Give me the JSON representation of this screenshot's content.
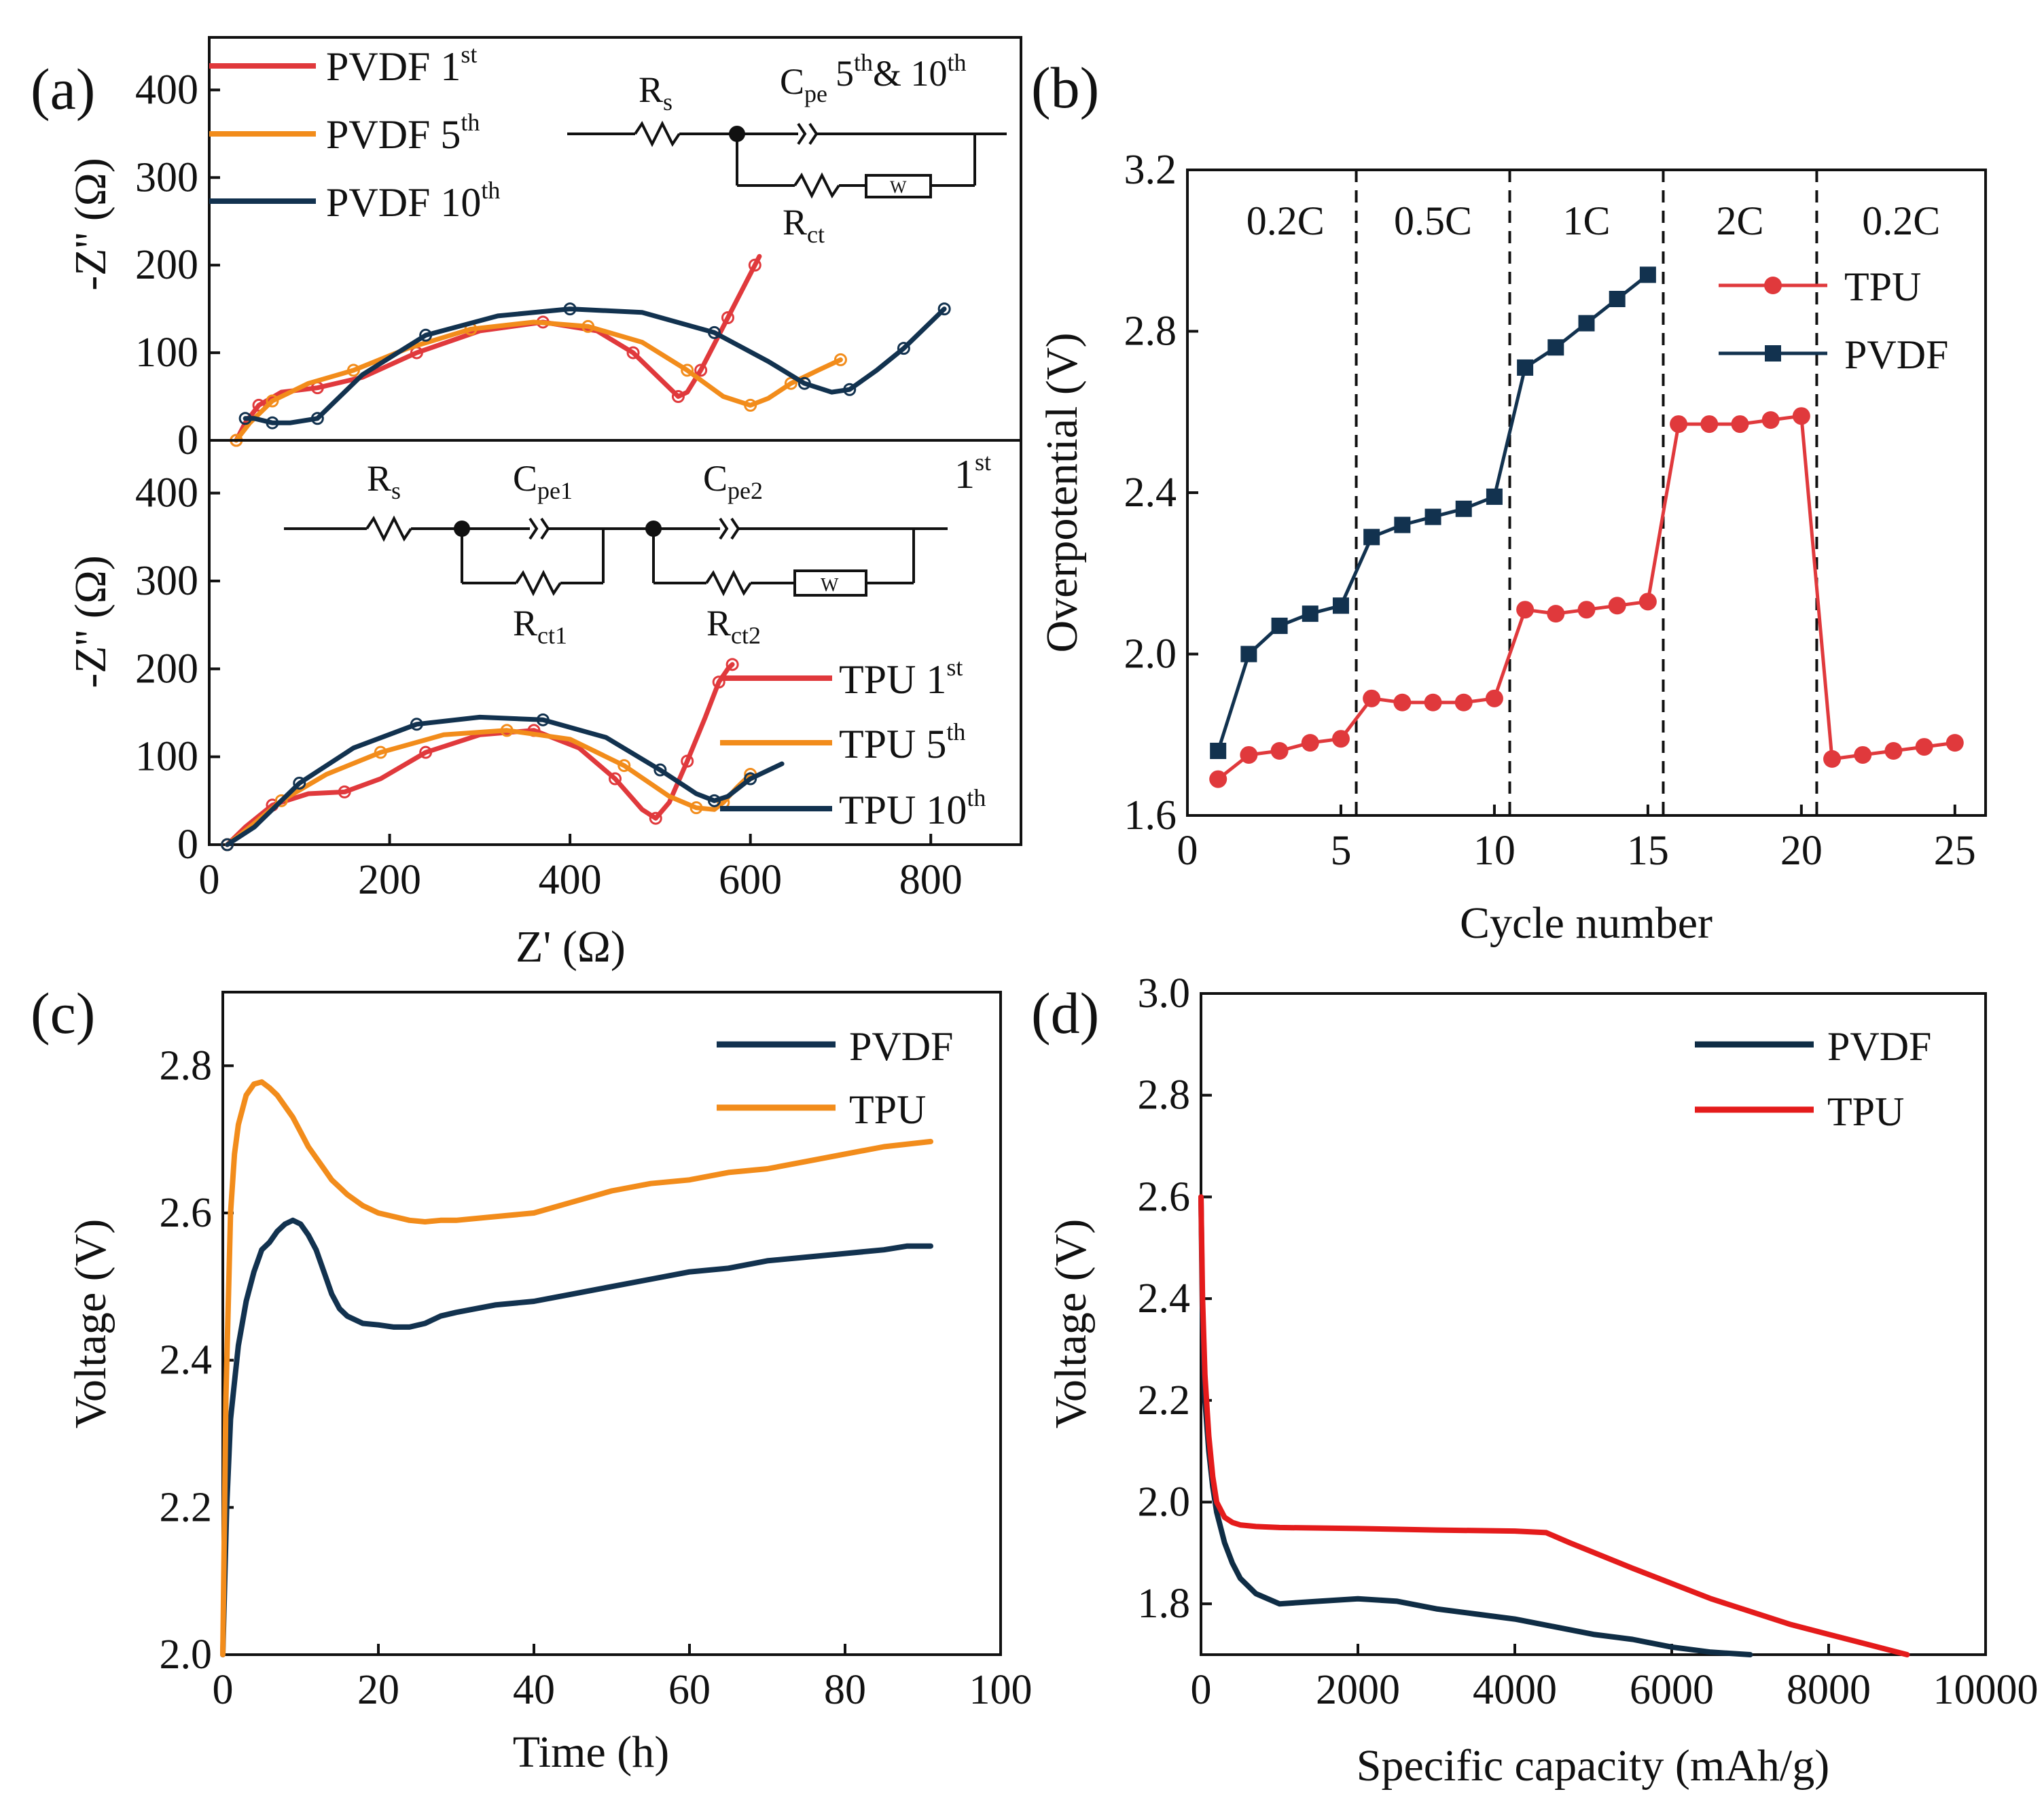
{
  "colors": {
    "red": "#e0393c",
    "orange": "#f28c1b",
    "navy": "#12324f",
    "pvdf_d": "#0f2d45",
    "tpu_d": "#e41b1b",
    "circle_gray": "#8899aa"
  },
  "chart_data": [
    {
      "id": "a-top",
      "type": "line",
      "panel_label": "(a)",
      "ylabel": "-Z'' (Ω)",
      "ylim": [
        0,
        460
      ],
      "xlim": [
        0,
        900
      ],
      "yticks": [
        "0",
        "100",
        "200",
        "300",
        "400"
      ],
      "legend": [
        "PVDF 1st",
        "PVDF 5th",
        "PVDF 10th"
      ],
      "circuit": {
        "rs": "R",
        "rs_sub": "s",
        "cpe": "C",
        "cpe_sub": "pe",
        "rct": "R",
        "rct_sub": "ct",
        "w": "W",
        "note": "5th& 10th"
      },
      "series": [
        {
          "name": "PVDF 1st",
          "color": "#e0393c",
          "x": [
            30,
            40,
            55,
            80,
            120,
            170,
            230,
            300,
            370,
            430,
            470,
            500,
            520,
            530,
            545,
            560,
            575,
            590,
            605,
            610
          ],
          "y": [
            0,
            20,
            40,
            55,
            60,
            72,
            100,
            125,
            135,
            125,
            100,
            70,
            50,
            55,
            80,
            110,
            140,
            170,
            200,
            210
          ]
        },
        {
          "name": "PVDF 5th",
          "color": "#f28c1b",
          "x": [
            30,
            45,
            70,
            110,
            160,
            220,
            290,
            360,
            420,
            480,
            530,
            570,
            600,
            620,
            645,
            675,
            700
          ],
          "y": [
            0,
            20,
            45,
            65,
            80,
            105,
            127,
            135,
            130,
            112,
            80,
            50,
            40,
            48,
            65,
            80,
            92
          ]
        },
        {
          "name": "PVDF 10th",
          "color": "#12324f",
          "x": [
            40,
            50,
            70,
            90,
            120,
            170,
            240,
            320,
            400,
            480,
            560,
            620,
            660,
            690,
            710,
            740,
            770,
            800,
            815
          ],
          "y": [
            25,
            25,
            20,
            20,
            25,
            75,
            120,
            142,
            150,
            146,
            123,
            90,
            65,
            55,
            58,
            80,
            105,
            135,
            150
          ]
        }
      ]
    },
    {
      "id": "a-bottom",
      "type": "line",
      "xlabel": "Z' (Ω)",
      "ylabel": "-Z'' (Ω)",
      "ylim": [
        0,
        460
      ],
      "xlim": [
        0,
        900
      ],
      "xticks": [
        "0",
        "200",
        "400",
        "600",
        "800"
      ],
      "yticks": [
        "0",
        "100",
        "200",
        "300",
        "400"
      ],
      "legend": [
        "TPU 1st",
        "TPU 5th",
        "TPU 10th"
      ],
      "cycle_note": "1st",
      "circuit": {
        "rs": "R",
        "rs_sub": "s",
        "cpe1": "C",
        "cpe1_sub": "pe1",
        "rct1": "R",
        "rct1_sub": "ct1",
        "cpe2": "C",
        "cpe2_sub": "pe2",
        "rct2": "R",
        "rct2_sub": "ct2",
        "w": "W"
      },
      "series": [
        {
          "name": "TPU 1st",
          "color": "#e0393c",
          "x": [
            20,
            40,
            70,
            110,
            150,
            190,
            240,
            300,
            360,
            410,
            450,
            480,
            495,
            510,
            530,
            550,
            565,
            575,
            580
          ],
          "y": [
            0,
            20,
            45,
            58,
            60,
            75,
            105,
            125,
            130,
            110,
            75,
            40,
            30,
            48,
            95,
            145,
            185,
            200,
            205
          ]
        },
        {
          "name": "TPU 5th",
          "color": "#f28c1b",
          "x": [
            20,
            45,
            80,
            130,
            190,
            260,
            330,
            400,
            460,
            510,
            540,
            560,
            570,
            585,
            600
          ],
          "y": [
            0,
            20,
            50,
            80,
            105,
            125,
            130,
            120,
            90,
            55,
            42,
            40,
            48,
            65,
            80
          ]
        },
        {
          "name": "TPU 10th",
          "color": "#12324f",
          "x": [
            20,
            50,
            100,
            160,
            230,
            300,
            370,
            440,
            500,
            540,
            560,
            575,
            600,
            635
          ],
          "y": [
            0,
            20,
            70,
            110,
            137,
            145,
            142,
            122,
            85,
            58,
            50,
            55,
            75,
            92
          ]
        }
      ]
    },
    {
      "id": "b",
      "type": "line",
      "panel_label": "(b)",
      "xlabel": "Cycle number",
      "ylabel": "Overpotential (V)",
      "xlim": [
        0,
        26
      ],
      "ylim": [
        1.6,
        3.2
      ],
      "xticks": [
        "0",
        "5",
        "10",
        "15",
        "20",
        "25"
      ],
      "yticks": [
        "1.6",
        "2.0",
        "2.4",
        "2.8",
        "3.2"
      ],
      "rate_labels": [
        "0.2C",
        "0.5C",
        "1C",
        "2C",
        "0.2C"
      ],
      "dividers": [
        5.5,
        10.5,
        15.5,
        20.5
      ],
      "legend": [
        "TPU",
        "PVDF"
      ],
      "series": [
        {
          "name": "TPU",
          "color": "#e0393c",
          "marker": "circle",
          "x": [
            1,
            2,
            3,
            4,
            5,
            6,
            7,
            8,
            9,
            10,
            11,
            12,
            13,
            14,
            15,
            16,
            17,
            18,
            19,
            20,
            21,
            22,
            23,
            24,
            25
          ],
          "y": [
            1.69,
            1.75,
            1.76,
            1.78,
            1.79,
            1.89,
            1.88,
            1.88,
            1.88,
            1.89,
            2.11,
            2.1,
            2.11,
            2.12,
            2.13,
            2.57,
            2.57,
            2.57,
            2.58,
            2.59,
            1.74,
            1.75,
            1.76,
            1.77,
            1.78
          ]
        },
        {
          "name": "PVDF",
          "color": "#12324f",
          "marker": "square",
          "x": [
            1,
            2,
            3,
            4,
            5,
            6,
            7,
            8,
            9,
            10,
            11,
            12,
            13,
            14,
            15
          ],
          "y": [
            1.76,
            2.0,
            2.07,
            2.1,
            2.12,
            2.29,
            2.32,
            2.34,
            2.36,
            2.39,
            2.71,
            2.76,
            2.82,
            2.88,
            2.94
          ]
        }
      ]
    },
    {
      "id": "c",
      "type": "line",
      "panel_label": "(c)",
      "xlabel": "Time (h)",
      "ylabel": "Voltage (V)",
      "xlim": [
        0,
        100
      ],
      "ylim": [
        2.0,
        2.9
      ],
      "xticks": [
        "0",
        "20",
        "40",
        "60",
        "80",
        "100"
      ],
      "yticks": [
        "2.0",
        "2.2",
        "2.4",
        "2.6",
        "2.8"
      ],
      "legend": [
        "PVDF",
        "TPU"
      ],
      "series": [
        {
          "name": "PVDF",
          "color": "#12324f",
          "x": [
            0,
            0.5,
            1,
            2,
            3,
            4,
            5,
            6,
            7,
            8,
            9,
            10,
            11,
            12,
            13,
            14,
            15,
            16,
            17,
            18,
            20,
            22,
            24,
            26,
            28,
            30,
            35,
            40,
            45,
            50,
            55,
            60,
            65,
            70,
            75,
            80,
            85,
            88,
            91
          ],
          "y": [
            2.0,
            2.2,
            2.32,
            2.42,
            2.48,
            2.52,
            2.55,
            2.56,
            2.575,
            2.585,
            2.59,
            2.585,
            2.57,
            2.55,
            2.52,
            2.49,
            2.47,
            2.46,
            2.455,
            2.45,
            2.448,
            2.445,
            2.445,
            2.45,
            2.46,
            2.465,
            2.475,
            2.48,
            2.49,
            2.5,
            2.51,
            2.52,
            2.525,
            2.535,
            2.54,
            2.545,
            2.55,
            2.555,
            2.555
          ]
        },
        {
          "name": "TPU",
          "color": "#f28c1b",
          "x": [
            0,
            0.4,
            1,
            1.5,
            2,
            3,
            4,
            5,
            6,
            7,
            8,
            9,
            10,
            11,
            12,
            13,
            14,
            15,
            16,
            18,
            20,
            22,
            24,
            26,
            28,
            30,
            35,
            40,
            45,
            50,
            55,
            60,
            65,
            70,
            75,
            80,
            85,
            91
          ],
          "y": [
            2.0,
            2.35,
            2.6,
            2.68,
            2.72,
            2.76,
            2.775,
            2.778,
            2.77,
            2.76,
            2.745,
            2.73,
            2.71,
            2.69,
            2.675,
            2.66,
            2.645,
            2.635,
            2.625,
            2.61,
            2.6,
            2.595,
            2.59,
            2.588,
            2.59,
            2.59,
            2.595,
            2.6,
            2.615,
            2.63,
            2.64,
            2.645,
            2.655,
            2.66,
            2.67,
            2.68,
            2.69,
            2.697
          ]
        }
      ]
    },
    {
      "id": "d",
      "type": "line",
      "panel_label": "(d)",
      "xlabel": "Specific capacity (mAh/g)",
      "ylabel": "Voltage (V)",
      "xlim": [
        0,
        10000
      ],
      "ylim": [
        1.7,
        3.0
      ],
      "xticks": [
        "0",
        "2000",
        "4000",
        "6000",
        "8000",
        "10000"
      ],
      "yticks": [
        "1.8",
        "2.0",
        "2.2",
        "2.4",
        "2.6",
        "2.8",
        "3.0"
      ],
      "legend": [
        "PVDF",
        "TPU"
      ],
      "series": [
        {
          "name": "PVDF",
          "color": "#0f2d45",
          "x": [
            0,
            20,
            50,
            100,
            150,
            200,
            300,
            400,
            500,
            700,
            1000,
            1500,
            2000,
            2500,
            3000,
            3500,
            4000,
            4500,
            5000,
            5500,
            6000,
            6500,
            7000
          ],
          "y": [
            2.6,
            2.35,
            2.2,
            2.1,
            2.03,
            1.98,
            1.92,
            1.88,
            1.85,
            1.82,
            1.8,
            1.805,
            1.81,
            1.805,
            1.79,
            1.78,
            1.77,
            1.755,
            1.74,
            1.73,
            1.715,
            1.705,
            1.7
          ]
        },
        {
          "name": "TPU",
          "color": "#e41b1b",
          "x": [
            0,
            20,
            50,
            100,
            150,
            200,
            300,
            400,
            500,
            700,
            1000,
            2000,
            3000,
            4000,
            4400,
            4700,
            5500,
            6500,
            7500,
            8000,
            8500,
            9000
          ],
          "y": [
            2.6,
            2.4,
            2.25,
            2.13,
            2.05,
            2.0,
            1.97,
            1.96,
            1.955,
            1.952,
            1.95,
            1.948,
            1.945,
            1.943,
            1.94,
            1.92,
            1.87,
            1.81,
            1.76,
            1.74,
            1.72,
            1.7
          ]
        }
      ]
    }
  ]
}
